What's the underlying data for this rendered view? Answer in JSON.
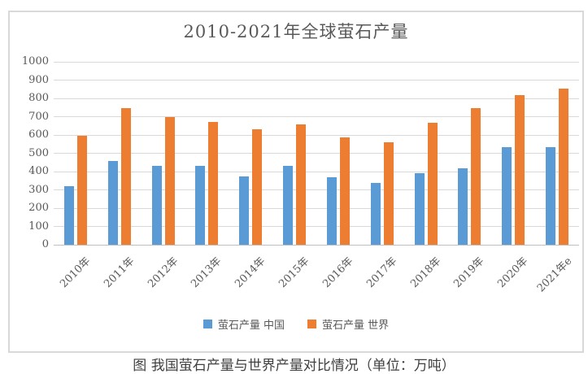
{
  "chart_data": {
    "type": "bar",
    "title": "2010-2021年全球萤石产量",
    "categories": [
      "2010年",
      "2011年",
      "2012年",
      "2013年",
      "2014年",
      "2015年",
      "2016年",
      "2017年",
      "2018年",
      "2019年",
      "2020年",
      "2021年e"
    ],
    "series": [
      {
        "id": "china",
        "name": "萤石产量 中国",
        "color": "#5B9BD5",
        "values": [
          320,
          460,
          430,
          430,
          375,
          430,
          370,
          340,
          390,
          420,
          535,
          535
        ]
      },
      {
        "id": "world",
        "name": "萤石产量 世界",
        "color": "#ED7D31",
        "values": [
          595,
          745,
          700,
          670,
          630,
          660,
          585,
          560,
          665,
          745,
          820,
          855
        ]
      }
    ],
    "xlabel": "",
    "ylabel": "",
    "ylim": [
      0,
      1000
    ],
    "ytick_step": 100,
    "grid": true,
    "legend_position": "bottom",
    "gridline_color": "#D9D9D9",
    "axis_line_color": "#BFBFBF",
    "tick_label_color": "#595959",
    "title_color": "#595959",
    "frame_border_color": "#D9D9D9"
  },
  "caption": "图 我国萤石产量与世界产量对比情况（单位：万吨）"
}
